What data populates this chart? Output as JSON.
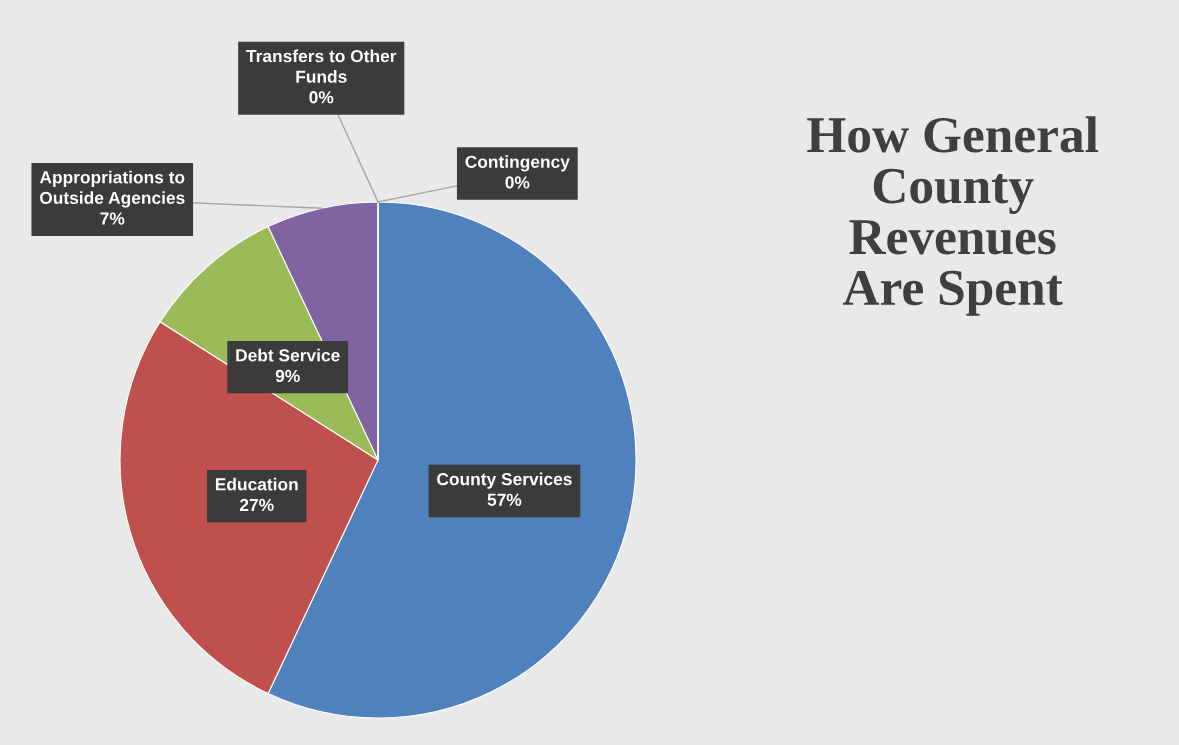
{
  "chart_data": {
    "type": "pie",
    "title": "How General County Revenues Are Spent",
    "categories": [
      "County Services",
      "Education",
      "Debt Service",
      "Appropriations to Outside Agencies",
      "Transfers to Other Funds",
      "Contingency"
    ],
    "values": [
      57,
      27,
      9,
      7,
      0,
      0
    ],
    "colors": [
      "#4f81bd",
      "#c0504d",
      "#9bbb59",
      "#8064a2",
      "#4bacc6",
      "#f79646"
    ],
    "value_labels": [
      "57%",
      "27%",
      "9%",
      "7%",
      "0%",
      "0%"
    ],
    "legend": false
  }
}
